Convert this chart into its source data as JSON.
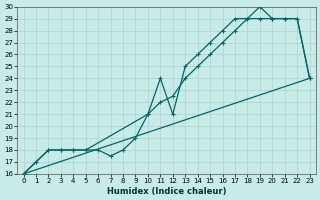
{
  "xlabel": "Humidex (Indice chaleur)",
  "bg_color": "#c8ebe8",
  "line_color": "#006666",
  "grid_color": "#aad4d0",
  "xlim": [
    -0.5,
    23.5
  ],
  "ylim": [
    16,
    30
  ],
  "xticks": [
    0,
    1,
    2,
    3,
    4,
    5,
    6,
    7,
    8,
    9,
    10,
    11,
    12,
    13,
    14,
    15,
    16,
    17,
    18,
    19,
    20,
    21,
    22,
    23
  ],
  "yticks": [
    16,
    17,
    18,
    19,
    20,
    21,
    22,
    23,
    24,
    25,
    26,
    27,
    28,
    29,
    30
  ],
  "line1_x": [
    0,
    1,
    2,
    3,
    4,
    5,
    6,
    7,
    8,
    9,
    10,
    11,
    12,
    13,
    14,
    15,
    16,
    17,
    18,
    19,
    20,
    21,
    22,
    23
  ],
  "line1_y": [
    16,
    17,
    18,
    18,
    18,
    18,
    18,
    17.5,
    18,
    19,
    21,
    24,
    21,
    25,
    26,
    27,
    28,
    29,
    29,
    30,
    29,
    29,
    29,
    24
  ],
  "line2_x": [
    0,
    2,
    3,
    4,
    5,
    10,
    11,
    12,
    13,
    14,
    15,
    16,
    17,
    18,
    19,
    20,
    21,
    22,
    23
  ],
  "line2_y": [
    16,
    18,
    18,
    18,
    18,
    21,
    22,
    22.5,
    24,
    25,
    26,
    27,
    28,
    29,
    29,
    29,
    29,
    29,
    24
  ],
  "line3_x": [
    0,
    23
  ],
  "line3_y": [
    16,
    24
  ]
}
